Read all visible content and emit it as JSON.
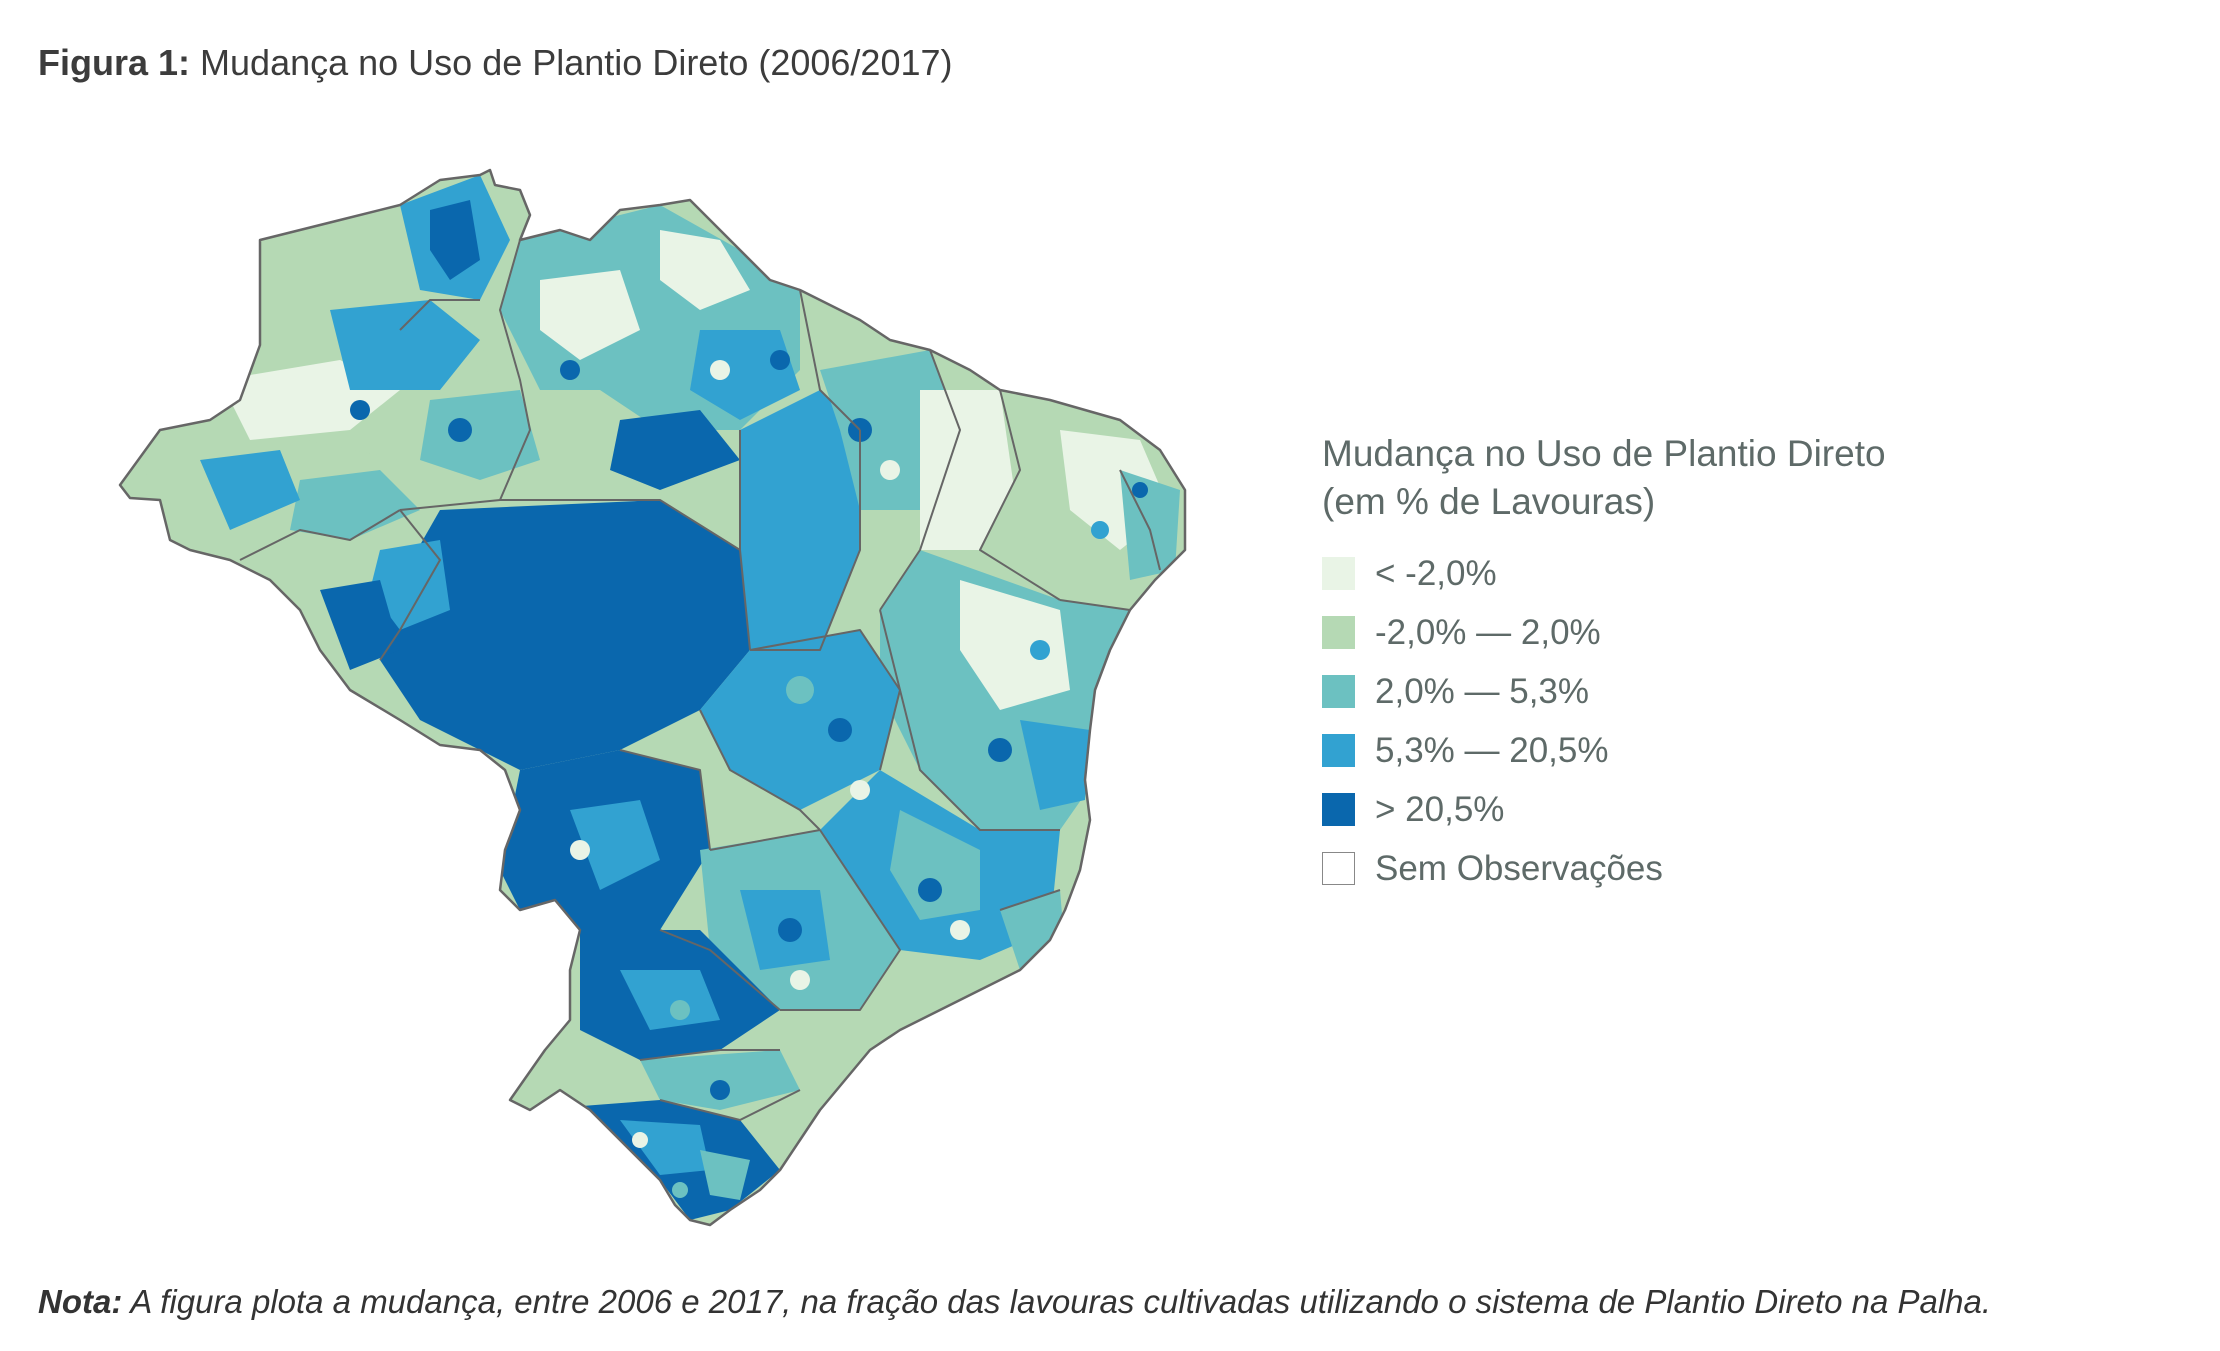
{
  "title": {
    "prefix": "Figura 1:",
    "text": "Mudança no Uso de Plantio Direto (2006/2017)"
  },
  "legend": {
    "title_line1": "Mudança no Uso de Plantio Direto",
    "title_line2": "(em % de Lavouras)",
    "items": [
      {
        "label": "< -2,0%",
        "color": "#e9f4e6"
      },
      {
        "label": "-2,0% — 2,0%",
        "color": "#b5d9b4"
      },
      {
        "label": "2,0% — 5,3%",
        "color": "#6cc1c1"
      },
      {
        "label": "5,3% — 20,5%",
        "color": "#32a2d1"
      },
      {
        "label": "> 20,5%",
        "color": "#0a67ad"
      },
      {
        "label": "Sem Observações",
        "color": "#ffffff"
      }
    ]
  },
  "map": {
    "boundary_color": "#666666"
  },
  "note": {
    "prefix": "Nota:",
    "text": " A figura plota a mudança, entre 2006 e 2017, na fração das lavouras cultivadas utilizando o sistema de Plantio Direto na Palha."
  }
}
